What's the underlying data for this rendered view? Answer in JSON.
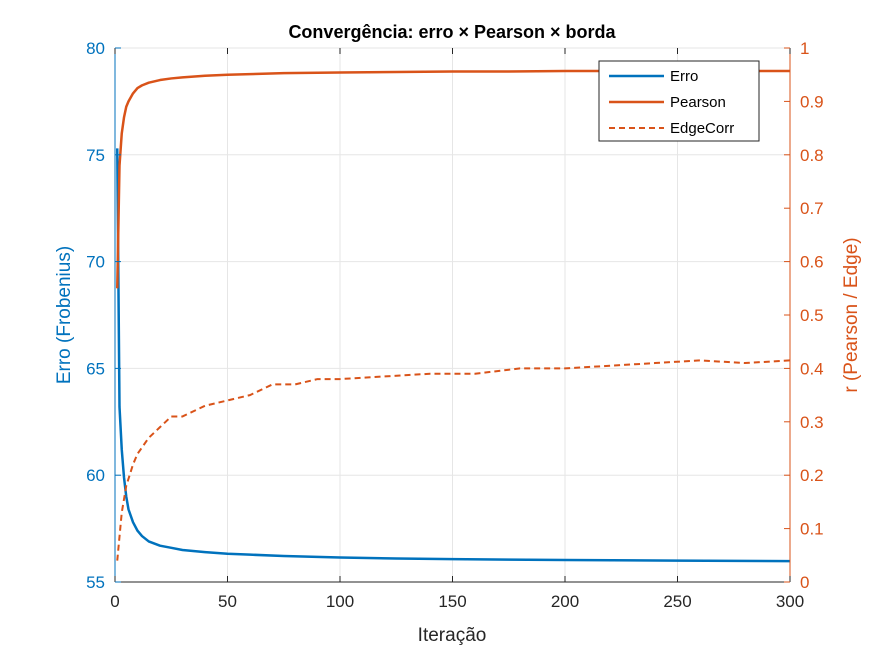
{
  "chart_data": {
    "type": "line",
    "title": "Convergência: erro × Pearson × borda",
    "xlabel": "Iteração",
    "ylabel_left": "Erro (Frobenius)",
    "ylabel_right": "r (Pearson / Edge)",
    "xlim": [
      0,
      300
    ],
    "ylim_left": [
      55,
      80
    ],
    "ylim_right": [
      0,
      1
    ],
    "x_ticks": [
      "0",
      "50",
      "100",
      "150",
      "200",
      "250",
      "300"
    ],
    "y_left_ticks": [
      "55",
      "60",
      "65",
      "70",
      "75",
      "80"
    ],
    "y_right_ticks": [
      "0",
      "0.1",
      "0.2",
      "0.3",
      "0.4",
      "0.5",
      "0.6",
      "0.7",
      "0.8",
      "0.9",
      "1"
    ],
    "grid": true,
    "legend_position": "top-right",
    "colors": {
      "left_axis": "#0072BD",
      "right_axis": "#D95319",
      "grid": "#e6e6e6"
    },
    "series": [
      {
        "name": "Erro",
        "axis": "left",
        "color": "#0072BD",
        "style": "solid",
        "x": [
          1,
          2,
          3,
          4,
          5,
          6,
          8,
          10,
          12,
          15,
          20,
          25,
          30,
          40,
          50,
          60,
          75,
          100,
          125,
          150,
          175,
          200,
          250,
          300
        ],
        "y": [
          75.3,
          63.2,
          61.2,
          59.9,
          59.0,
          58.4,
          57.8,
          57.4,
          57.15,
          56.9,
          56.7,
          56.6,
          56.5,
          56.4,
          56.32,
          56.28,
          56.22,
          56.15,
          56.1,
          56.07,
          56.05,
          56.03,
          56.0,
          55.98
        ]
      },
      {
        "name": "Pearson",
        "axis": "right",
        "color": "#D95319",
        "style": "solid",
        "x": [
          1,
          2,
          3,
          4,
          5,
          6,
          8,
          10,
          12,
          15,
          20,
          25,
          30,
          40,
          50,
          60,
          75,
          100,
          125,
          150,
          175,
          200,
          250,
          300
        ],
        "y": [
          0.55,
          0.78,
          0.84,
          0.87,
          0.89,
          0.9,
          0.915,
          0.925,
          0.93,
          0.935,
          0.94,
          0.943,
          0.945,
          0.948,
          0.95,
          0.951,
          0.953,
          0.954,
          0.955,
          0.956,
          0.956,
          0.957,
          0.957,
          0.957
        ]
      },
      {
        "name": "EdgeCorr",
        "axis": "right",
        "color": "#D95319",
        "style": "dashed",
        "x": [
          1,
          3,
          5,
          8,
          10,
          15,
          20,
          25,
          30,
          35,
          40,
          50,
          60,
          70,
          80,
          90,
          100,
          120,
          140,
          160,
          180,
          200,
          220,
          240,
          260,
          280,
          300
        ],
        "y": [
          0.04,
          0.13,
          0.18,
          0.22,
          0.24,
          0.27,
          0.29,
          0.31,
          0.31,
          0.32,
          0.33,
          0.34,
          0.35,
          0.37,
          0.37,
          0.38,
          0.38,
          0.385,
          0.39,
          0.39,
          0.4,
          0.4,
          0.405,
          0.41,
          0.415,
          0.41,
          0.415
        ]
      }
    ]
  }
}
